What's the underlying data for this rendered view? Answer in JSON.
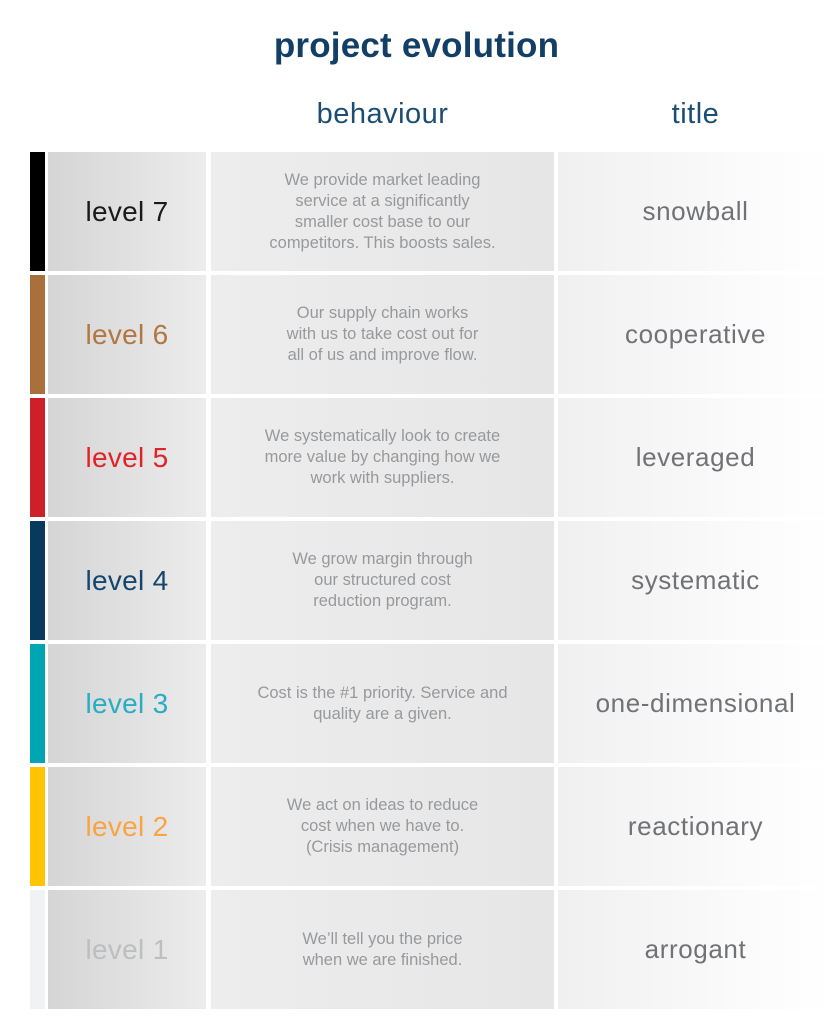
{
  "header": {
    "page_title": "project evolution",
    "behaviour_col": "behaviour",
    "title_col": "title"
  },
  "colors": {
    "heading": "#133F66",
    "column_header": "#1C4E74",
    "behaviour_text": "#97999C",
    "title_text": "#717275"
  },
  "rows": [
    {
      "level": "level 7",
      "bar_color": "#000000",
      "label_color": "#1A1A1A",
      "behaviour": "We provide market leading\nservice at a significantly\nsmaller cost base to our\ncompetitors. This boosts sales.",
      "title": "snowball"
    },
    {
      "level": "level 6",
      "bar_color": "#A8713C",
      "label_color": "#B1773F",
      "behaviour": "Our supply chain works\nwith us to take cost out for\nall of us and improve flow.",
      "title": "cooperative"
    },
    {
      "level": "level 5",
      "bar_color": "#CE2029",
      "label_color": "#E12328",
      "behaviour": "We systematically look to create\nmore value by changing how we\nwork with suppliers.",
      "title": "leveraged"
    },
    {
      "level": "level 4",
      "bar_color": "#073A5D",
      "label_color": "#15466D",
      "behaviour": "We grow margin through\nour structured cost\nreduction program.",
      "title": "systematic"
    },
    {
      "level": "level 3",
      "bar_color": "#00A5B3",
      "label_color": "#28ADC3",
      "behaviour": "Cost is the #1 priority. Service and\nquality are a given.",
      "title": "one-dimensional"
    },
    {
      "level": "level 2",
      "bar_color": "#FFC503",
      "label_color": "#F9A441",
      "behaviour": "We act on ideas to reduce\ncost when we have to.\n(Crisis management)",
      "title": "reactionary"
    },
    {
      "level": "level 1",
      "bar_color": "#F1F2F3",
      "label_color": "#BCBEC0",
      "behaviour": "We’ll tell you the price\nwhen we are finished.",
      "title": "arrogant"
    }
  ]
}
